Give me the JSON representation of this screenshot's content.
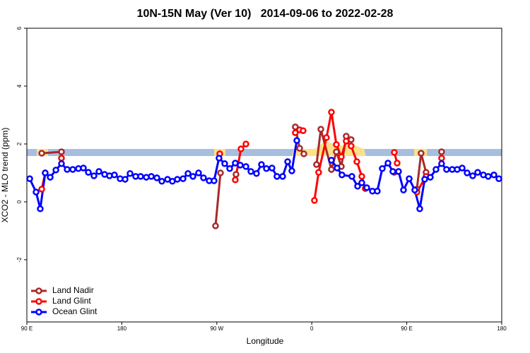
{
  "chart_data": {
    "type": "line",
    "title": "10N-15N May (Ver 10)   2014-09-06 to 2022-02-28",
    "x_label": "Longitude",
    "y_label": "XCO2 - MLO trend (ppm)",
    "xlim": [
      90,
      540
    ],
    "xticks": [
      {
        "value": 90,
        "label": "90 E"
      },
      180,
      {
        "value": 270,
        "label": "90 W"
      },
      {
        "value": 360,
        "label": "0"
      },
      {
        "value": 450,
        "label": "90 E"
      },
      {
        "value": 540,
        "label": "180"
      }
    ],
    "ylim": [
      -4.15,
      6
    ],
    "yticks": [
      -2,
      0,
      2,
      4,
      6
    ],
    "legend": "bottom-left",
    "series": [
      {
        "name": "Land Nadir",
        "color": "#a52a2a",
        "x": [
          104.1,
          122.8,
          null,
          268.8,
          273.5,
          null,
          288.2,
          null,
          344.4,
          348.5,
          352.5,
          null,
          364.5,
          368.6,
          378.6,
          383.3,
          388.0,
          392.6,
          397.3,
          null,
          438.2,
          null,
          459.6,
          463.6,
          468.3,
          null,
          483.0
        ],
        "values": [
          1.68,
          1.73,
          null,
          -0.83,
          1.0,
          null,
          0.95,
          null,
          2.59,
          1.85,
          1.66,
          null,
          1.29,
          2.51,
          1.12,
          1.73,
          1.22,
          2.27,
          2.15,
          null,
          1.02,
          null,
          0.44,
          1.68,
          1.02,
          null,
          1.73
        ]
      },
      {
        "name": "Land Glint",
        "color": "#ff0000",
        "x": [
          104.1,
          107.4,
          null,
          122.8,
          null,
          272.8,
          null,
          287.5,
          292.9,
          297.6,
          null,
          344.4,
          348.5,
          351.8,
          null,
          362.5,
          366.5,
          373.9,
          378.6,
          383.3,
          388.0,
          392.6,
          397.3,
          402.7,
          407.4,
          410.7,
          null,
          438.2,
          440.9,
          null,
          459.6,
          468.3,
          null,
          483.0
        ],
        "values": [
          0.44,
          1.0,
          null,
          1.51,
          null,
          1.66,
          null,
          0.76,
          1.83,
          2.0,
          null,
          2.39,
          2.49,
          2.46,
          null,
          0.05,
          1.02,
          2.22,
          3.1,
          1.98,
          1.56,
          2.1,
          1.93,
          1.39,
          0.88,
          0.46,
          null,
          1.71,
          1.34,
          null,
          0.34,
          0.88,
          null,
          1.51
        ]
      },
      {
        "name": "Ocean Glint",
        "color": "#0000ff",
        "x": [
          92.7,
          98.7,
          102.7,
          107.4,
          112.1,
          117.5,
          122.8,
          128.2,
          133.5,
          138.9,
          143.6,
          148.3,
          153.6,
          158.3,
          163.7,
          168.3,
          173.0,
          178.4,
          183.1,
          187.8,
          193.1,
          197.8,
          203.2,
          207.9,
          213.2,
          217.9,
          223.3,
          227.9,
          232.6,
          238.0,
          242.7,
          247.4,
          252.7,
          257.4,
          262.8,
          267.4,
          272.1,
          277.5,
          282.2,
          287.5,
          292.2,
          297.6,
          302.3,
          307.6,
          312.3,
          317.0,
          322.3,
          327.0,
          332.4,
          337.1,
          341.1,
          345.8,
          null,
          378.6,
          384.0,
          388.6,
          398.0,
          403.4,
          407.4,
          412.1,
          417.5,
          422.1,
          426.8,
          432.2,
          436.8,
          442.2,
          446.9,
          452.3,
          457.6,
          462.3,
          467.0,
          472.3,
          477.7,
          483.0,
          487.7,
          493.1,
          497.8,
          502.5,
          507.2,
          512.5,
          517.2,
          522.6,
          527.2,
          532.6,
          537.3
        ],
        "values": [
          0.8,
          0.34,
          -0.24,
          1.0,
          0.85,
          1.1,
          1.32,
          1.12,
          1.12,
          1.15,
          1.17,
          1.02,
          0.9,
          1.05,
          0.95,
          0.9,
          0.93,
          0.8,
          0.78,
          0.98,
          0.88,
          0.88,
          0.85,
          0.88,
          0.83,
          0.71,
          0.78,
          0.71,
          0.78,
          0.8,
          0.98,
          0.88,
          1.0,
          0.83,
          0.73,
          0.73,
          1.51,
          1.32,
          1.15,
          1.34,
          1.27,
          1.22,
          1.05,
          0.98,
          1.29,
          1.15,
          1.17,
          0.88,
          0.88,
          1.39,
          1.07,
          2.12,
          null,
          1.44,
          1.17,
          0.93,
          0.88,
          0.54,
          0.66,
          0.49,
          0.37,
          0.37,
          1.15,
          1.34,
          1.05,
          1.05,
          0.41,
          0.8,
          0.41,
          -0.24,
          0.78,
          0.85,
          1.12,
          1.32,
          1.12,
          1.12,
          1.12,
          1.17,
          1.0,
          0.9,
          1.02,
          0.93,
          0.88,
          0.93,
          0.8
        ]
      }
    ]
  }
}
